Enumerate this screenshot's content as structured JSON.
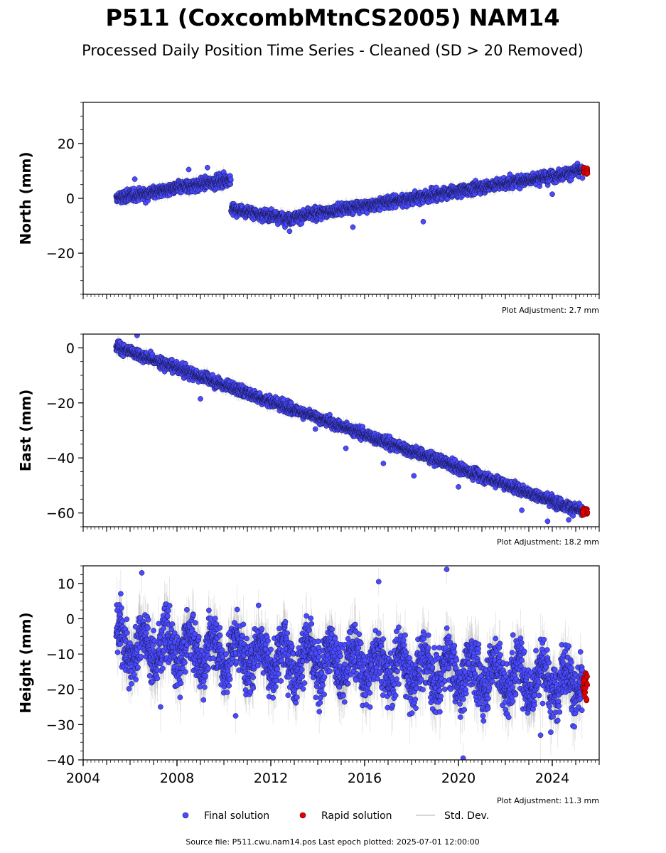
{
  "title": "P511 (CoxcombMtnCS2005) NAM14",
  "subtitle": "Processed Daily Position Time Series - Cleaned (SD > 20 Removed)",
  "source_note": "Source file: P511.cwu.nam14.pos  Last epoch plotted: 2025-07-01 12:00:00",
  "legend": [
    {
      "label": "Final solution",
      "color": "#4a4aff",
      "kind": "dot"
    },
    {
      "label": "Rapid solution",
      "color": "#e00000",
      "kind": "dot"
    },
    {
      "label": "Std. Dev.",
      "color": "#c8c8c8",
      "kind": "line"
    }
  ],
  "chart_data": [
    {
      "type": "scatter",
      "panel": "north",
      "ylabel": "North (mm)",
      "plot_adjustment": "Plot Adjustment: 2.7 mm",
      "xlim": [
        2004.0,
        2026.0
      ],
      "ylim": [
        -35,
        35
      ],
      "yticks": [
        -20,
        0,
        20
      ],
      "ytick_labels": [
        "−20",
        "0",
        "20"
      ],
      "series": [
        {
          "name": "Final solution",
          "color": "#4a4aff",
          "segments": [
            {
              "x_start": 2005.4,
              "x_end": 2010.3,
              "y_start": 0.0,
              "y_end": 7.0,
              "noise": 1.6
            },
            {
              "x_start": 2010.3,
              "x_end": 2012.9,
              "y_start": -4.0,
              "y_end": -7.5,
              "noise": 1.5
            },
            {
              "x_start": 2012.9,
              "x_end": 2025.3,
              "y_start": -7.0,
              "y_end": 10.0,
              "noise": 1.5
            }
          ],
          "outliers": [
            [
              2006.2,
              7.0
            ],
            [
              2008.5,
              10.5
            ],
            [
              2009.3,
              11.2
            ],
            [
              2012.8,
              -12.0
            ],
            [
              2015.5,
              -10.5
            ],
            [
              2018.5,
              -8.5
            ],
            [
              2024.0,
              1.5
            ]
          ]
        },
        {
          "name": "Rapid solution",
          "color": "#e00000",
          "x_start": 2025.3,
          "x_end": 2025.5,
          "y": 10.0,
          "noise": 0.8
        }
      ]
    },
    {
      "type": "scatter",
      "panel": "east",
      "ylabel": "East (mm)",
      "plot_adjustment": "Plot Adjustment: 18.2 mm",
      "xlim": [
        2004.0,
        2026.0
      ],
      "ylim": [
        -65,
        5
      ],
      "yticks": [
        -60,
        -40,
        -20,
        0
      ],
      "ytick_labels": [
        "−60",
        "−40",
        "−20",
        "0"
      ],
      "series": [
        {
          "name": "Final solution",
          "color": "#4a4aff",
          "segments": [
            {
              "x_start": 2005.4,
              "x_end": 2025.3,
              "y_start": 0.5,
              "y_end": -59.5,
              "noise": 1.4
            }
          ],
          "outliers": [
            [
              2006.3,
              4.5
            ],
            [
              2009.0,
              -18.5
            ],
            [
              2013.9,
              -29.5
            ],
            [
              2015.2,
              -36.5
            ],
            [
              2016.8,
              -42.0
            ],
            [
              2018.1,
              -46.5
            ],
            [
              2020.0,
              -50.5
            ],
            [
              2022.7,
              -59.0
            ],
            [
              2023.8,
              -63.0
            ],
            [
              2024.7,
              -62.5
            ]
          ]
        },
        {
          "name": "Rapid solution",
          "color": "#e00000",
          "x_start": 2025.3,
          "x_end": 2025.5,
          "y": -59.5,
          "noise": 1.0
        }
      ]
    },
    {
      "type": "scatter",
      "panel": "height",
      "ylabel": "Height (mm)",
      "plot_adjustment": "Plot Adjustment: 11.3 mm",
      "xlim": [
        2004.0,
        2026.0
      ],
      "ylim": [
        -40,
        15
      ],
      "yticks": [
        -40,
        -30,
        -20,
        -10,
        0,
        10
      ],
      "ytick_labels": [
        "−40",
        "−30",
        "−20",
        "−10",
        "0",
        "10"
      ],
      "xticks": [
        2004,
        2008,
        2012,
        2016,
        2020,
        2024
      ],
      "xtick_labels": [
        "2004",
        "2008",
        "2012",
        "2016",
        "2020",
        "2024"
      ],
      "series": [
        {
          "name": "Final solution",
          "color": "#4a4aff",
          "segments": [
            {
              "x_start": 2005.4,
              "x_end": 2025.3,
              "y_start": -7.0,
              "y_end": -18.0,
              "noise": 5.5,
              "seasonal_amplitude": 4.5
            }
          ],
          "outliers": [
            [
              2006.5,
              13.0
            ],
            [
              2019.5,
              14.0
            ],
            [
              2020.2,
              -39.5
            ],
            [
              2007.3,
              -25.0
            ],
            [
              2010.5,
              -27.5
            ],
            [
              2016.6,
              10.5
            ],
            [
              2023.5,
              -33.0
            ]
          ]
        },
        {
          "name": "Rapid solution",
          "color": "#e00000",
          "x_start": 2025.3,
          "x_end": 2025.5,
          "y": -18.5,
          "noise": 3.0
        }
      ]
    }
  ]
}
